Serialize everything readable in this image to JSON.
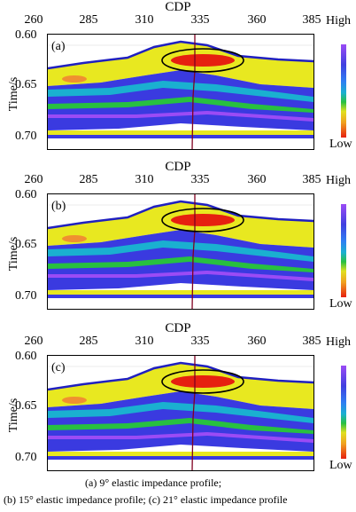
{
  "axis": {
    "x_title": "CDP",
    "x_ticks": [
      "260",
      "285",
      "310",
      "335",
      "360",
      "385"
    ],
    "y_title": "Time/s",
    "y_ticks": [
      "0.60",
      "0.65",
      "0.70"
    ]
  },
  "colorbar": {
    "high": "High",
    "low": "Low"
  },
  "panels": [
    {
      "label": "(a)"
    },
    {
      "label": "(b)"
    },
    {
      "label": "(c)"
    }
  ],
  "caption": {
    "line1": "(a)    9°    elastic impedance profile;",
    "line2": "(b) 15° elastic  impedance  profile;  (c)  21° elastic impedance profile"
  },
  "colors": {
    "high": "#9b4bf5",
    "blue": "#3a3ae0",
    "cyan": "#1ab0d0",
    "green": "#28c040",
    "yellow": "#e8e820",
    "red": "#e62010"
  }
}
